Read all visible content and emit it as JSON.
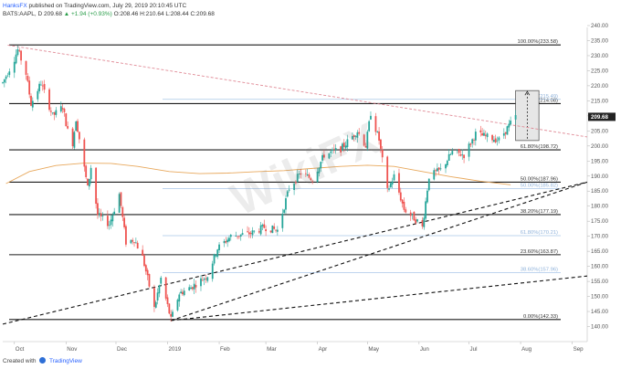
{
  "header": {
    "author": "HanksFX",
    "published": "published on TradingView.com, July 29, 2019 20:10:45 UTC",
    "symbol_line": "BATS:AAPL, D",
    "price": "209.68",
    "change_label": "▲",
    "change": "+1.94 (+0.93%)",
    "ohlc": "O:208.46 H:210.64 L:208.44 C:209.68"
  },
  "footer": {
    "created_with": "Created with",
    "brand": "TradingView"
  },
  "watermark": "WikiFX",
  "colors": {
    "up": "#26a69a",
    "down": "#ef5350",
    "ma": "#e8a85c",
    "trend": "#e08a96",
    "fib_strong": "#1c1c1c",
    "fib_light": "#a8c6e8",
    "price_badge": "#222222"
  },
  "chart_data": {
    "type": "candlestick",
    "symbol": "AAPL",
    "x_axis_labels": [
      "Oct",
      "Nov",
      "Dec",
      "2019",
      "Feb",
      "Mar",
      "Apr",
      "May",
      "Jun",
      "Jul",
      "Aug",
      "Sep"
    ],
    "y_axis": {
      "min": 135,
      "max": 240,
      "step": 5,
      "position": "right"
    },
    "y_ticks": [
      "240.00",
      "235.00",
      "230.00",
      "225.00",
      "220.00",
      "215.00",
      "210.00",
      "205.00",
      "200.00",
      "195.00",
      "190.00",
      "185.00",
      "180.00",
      "175.00",
      "170.00",
      "165.00",
      "160.00",
      "155.00",
      "150.00",
      "145.00",
      "140.00"
    ],
    "last_price": 209.68,
    "last_price_label": "209.68",
    "fib_levels": [
      {
        "label": "100.00%(233.58)",
        "value": 233.58,
        "style": "strong"
      },
      {
        "label": "78.60%(214.08)",
        "value": 214.08,
        "style": "strong"
      },
      {
        "label": "61.80%(198.72)",
        "value": 198.72,
        "style": "strong"
      },
      {
        "label": "50.00%(187.96)",
        "value": 187.96,
        "style": "strong"
      },
      {
        "label": "38.20%(177.19)",
        "value": 177.19,
        "style": "strong"
      },
      {
        "label": "23.60%(163.87)",
        "value": 163.87,
        "style": "strong"
      },
      {
        "label": "0.00%(142.33)",
        "value": 142.33,
        "style": "strong"
      },
      {
        "label": "78.60%(215.49)",
        "value": 215.49,
        "style": "light"
      },
      {
        "label": "50.00%(185.82)",
        "value": 185.82,
        "style": "light"
      },
      {
        "label": "61.80%(170.21)",
        "value": 170.21,
        "style": "light"
      },
      {
        "label": "38.60%(157.96)",
        "value": 157.96,
        "style": "light"
      }
    ],
    "moving_average": [
      [
        "2018-09-26",
        187.5
      ],
      [
        "2018-10-10",
        191.5
      ],
      [
        "2018-10-26",
        193.5
      ],
      [
        "2018-11-12",
        194.3
      ],
      [
        "2018-11-28",
        194.2
      ],
      [
        "2018-12-14",
        193.2
      ],
      [
        "2019-01-02",
        191.5
      ],
      [
        "2019-01-20",
        190.8
      ],
      [
        "2019-02-06",
        191.0
      ],
      [
        "2019-02-22",
        191.4
      ],
      [
        "2019-03-12",
        191.8
      ],
      [
        "2019-03-28",
        192.5
      ],
      [
        "2019-04-15",
        193.2
      ],
      [
        "2019-05-01",
        193.6
      ],
      [
        "2019-05-17",
        193.2
      ],
      [
        "2019-06-03",
        191.5
      ],
      [
        "2019-06-20",
        189.8
      ],
      [
        "2019-07-08",
        188.3
      ],
      [
        "2019-07-26",
        187.1
      ]
    ],
    "trend_line_dotted": {
      "from": [
        "2018-09-27",
        233.5
      ],
      "to": [
        "2019-09-10",
        203.0
      ]
    },
    "trend_lines_dashed": [
      {
        "from": [
          "2018-09-24",
          140.8
        ],
        "to": [
          "2019-09-10",
          188.0
        ]
      },
      {
        "from": [
          "2019-01-03",
          142.0
        ],
        "to": [
          "2019-09-10",
          188.0
        ]
      },
      {
        "from": [
          "2019-01-03",
          142.0
        ],
        "to": [
          "2019-09-10",
          156.8
        ]
      }
    ],
    "projection_box": {
      "from_date": "2019-07-29",
      "to_date": "2019-08-12",
      "low": 201.8,
      "high": 218.4
    },
    "price_path": [
      [
        "2018-09-24",
        221.0
      ],
      [
        "2018-10-01",
        229.0
      ],
      [
        "2018-10-03",
        232.0
      ],
      [
        "2018-10-08",
        224.0
      ],
      [
        "2018-10-11",
        214.0
      ],
      [
        "2018-10-17",
        221.0
      ],
      [
        "2018-10-24",
        210.0
      ],
      [
        "2018-10-30",
        213.0
      ],
      [
        "2018-11-02",
        205.0
      ],
      [
        "2018-11-05",
        201.0
      ],
      [
        "2018-11-07",
        209.0
      ],
      [
        "2018-11-14",
        186.0
      ],
      [
        "2018-11-16",
        193.0
      ],
      [
        "2018-11-20",
        177.0
      ],
      [
        "2018-11-27",
        174.0
      ],
      [
        "2018-12-03",
        184.0
      ],
      [
        "2018-12-07",
        168.0
      ],
      [
        "2018-12-12",
        169.0
      ],
      [
        "2018-12-17",
        163.0
      ],
      [
        "2018-12-20",
        156.0
      ],
      [
        "2018-12-24",
        146.0
      ],
      [
        "2018-12-28",
        156.0
      ],
      [
        "2019-01-03",
        142.3
      ],
      [
        "2019-01-08",
        151.0
      ],
      [
        "2019-01-15",
        153.0
      ],
      [
        "2019-01-25",
        157.0
      ],
      [
        "2019-01-31",
        166.0
      ],
      [
        "2019-02-08",
        170.0
      ],
      [
        "2019-02-20",
        171.0
      ],
      [
        "2019-02-28",
        173.0
      ],
      [
        "2019-03-08",
        172.0
      ],
      [
        "2019-03-15",
        186.0
      ],
      [
        "2019-03-22",
        191.0
      ],
      [
        "2019-03-29",
        189.0
      ],
      [
        "2019-04-05",
        197.0
      ],
      [
        "2019-04-15",
        199.0
      ],
      [
        "2019-04-25",
        205.0
      ],
      [
        "2019-04-30",
        200.0
      ],
      [
        "2019-05-03",
        211.0
      ],
      [
        "2019-05-08",
        202.0
      ],
      [
        "2019-05-13",
        185.0
      ],
      [
        "2019-05-17",
        190.0
      ],
      [
        "2019-05-23",
        179.0
      ],
      [
        "2019-05-31",
        175.0
      ],
      [
        "2019-06-03",
        173.0
      ],
      [
        "2019-06-07",
        190.0
      ],
      [
        "2019-06-14",
        192.0
      ],
      [
        "2019-06-21",
        198.0
      ],
      [
        "2019-06-28",
        197.0
      ],
      [
        "2019-07-05",
        204.0
      ],
      [
        "2019-07-12",
        203.0
      ],
      [
        "2019-07-19",
        202.0
      ],
      [
        "2019-07-26",
        207.5
      ],
      [
        "2019-07-29",
        209.68
      ]
    ]
  }
}
